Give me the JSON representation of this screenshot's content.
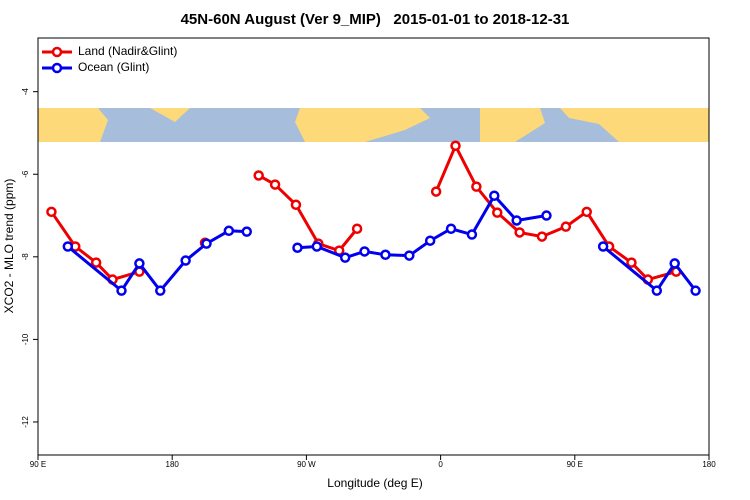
{
  "chart_data": {
    "type": "line",
    "title": "45N-60N August (Ver 9_MIP)   2015-01-01 to 2018-12-31",
    "xlabel": "Longitude (deg E)",
    "ylabel": "XCO2 - MLO trend (ppm)",
    "legend": "top-left",
    "xlim": [
      90,
      540
    ],
    "ylim": [
      -12.8,
      -2.7
    ],
    "xticks": [
      {
        "value": 90,
        "label": "90 E"
      },
      180,
      {
        "value": 270,
        "label": "90 W"
      },
      {
        "value": 360,
        "label": "0"
      },
      {
        "value": 450,
        "label": "90 E"
      },
      {
        "value": 540,
        "label": "180"
      }
    ],
    "yticks": [
      -4,
      -6,
      -8,
      -10,
      -12
    ],
    "series": [
      {
        "name": "Land (Nadir&Glint)",
        "color": "#ee0000",
        "x": [
          99,
          115,
          129,
          140,
          158,
          180,
          202,
          220,
          238,
          249,
          263,
          278,
          292,
          304,
          330,
          357,
          370,
          384,
          398,
          413,
          428,
          444,
          458,
          473,
          488,
          499,
          518
        ],
        "values": [
          -6.91,
          -7.75,
          -8.14,
          -8.55,
          -8.36,
          null,
          -7.66,
          null,
          -6.03,
          -6.25,
          -6.74,
          -7.68,
          -7.85,
          -7.32,
          null,
          -6.42,
          -5.31,
          -6.3,
          -6.93,
          -7.41,
          -7.51,
          -7.27,
          -6.91,
          -7.75,
          -8.14,
          -8.55,
          -8.36
        ]
      },
      {
        "name": "Ocean (Glint)",
        "color": "#0000ee",
        "x": [
          110,
          146,
          158,
          172,
          189,
          203,
          218,
          230,
          250,
          264,
          277,
          296,
          309,
          323,
          339,
          353,
          367,
          381,
          396,
          411,
          431,
          450,
          469,
          505,
          517,
          531
        ],
        "values": [
          -7.75,
          -8.82,
          -8.16,
          -8.82,
          -8.09,
          -7.68,
          -7.37,
          -7.39,
          null,
          -7.78,
          -7.75,
          -8.02,
          -7.87,
          -7.95,
          -7.97,
          -7.61,
          -7.32,
          -7.46,
          -6.52,
          -7.12,
          -7.0,
          null,
          -7.75,
          -8.82,
          -8.16,
          -8.82
        ]
      }
    ]
  }
}
